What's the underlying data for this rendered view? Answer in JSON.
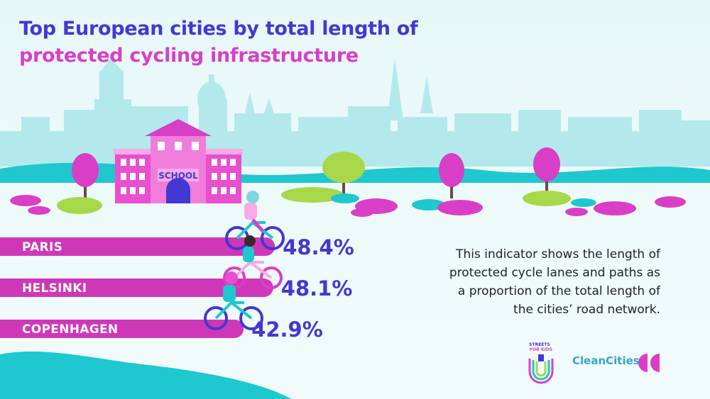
{
  "title": {
    "line1": "Top European cities by total length of",
    "line2": "protected cycling infrastructure"
  },
  "description": {
    "lines": [
      "This indicator shows the length of",
      "protected cycle lanes and paths as",
      "a proportion of the total length of",
      "the cities’ road network."
    ]
  },
  "scene": {
    "school_sign": "SCHOOL"
  },
  "chart_data": {
    "type": "bar",
    "orientation": "horizontal",
    "unit": "%",
    "categories": [
      "PARIS",
      "HELSINKI",
      "COPENHAGEN"
    ],
    "values": [
      48.4,
      48.1,
      42.9
    ],
    "value_labels": [
      "48.4%",
      "48.1%",
      "42.9%"
    ],
    "title": "Top European cities by total length of protected cycling infrastructure",
    "xlabel": "",
    "ylabel": "",
    "grid": false,
    "legend": "none"
  },
  "logos": {
    "streets_for_kids_line1": "STREETS",
    "streets_for_kids_line2": "FOR KIDS",
    "cleancities": "CleanCities"
  },
  "colors": {
    "title_primary": "#4338d2",
    "title_accent": "#d93ec7",
    "bar": "#cf37b9",
    "value_text": "#4338d2",
    "skyline": "#a9e6ea",
    "ground_teal": "#1fc7cf",
    "tree_green": "#a6d84a",
    "logo_pink": "#d93ec7"
  }
}
